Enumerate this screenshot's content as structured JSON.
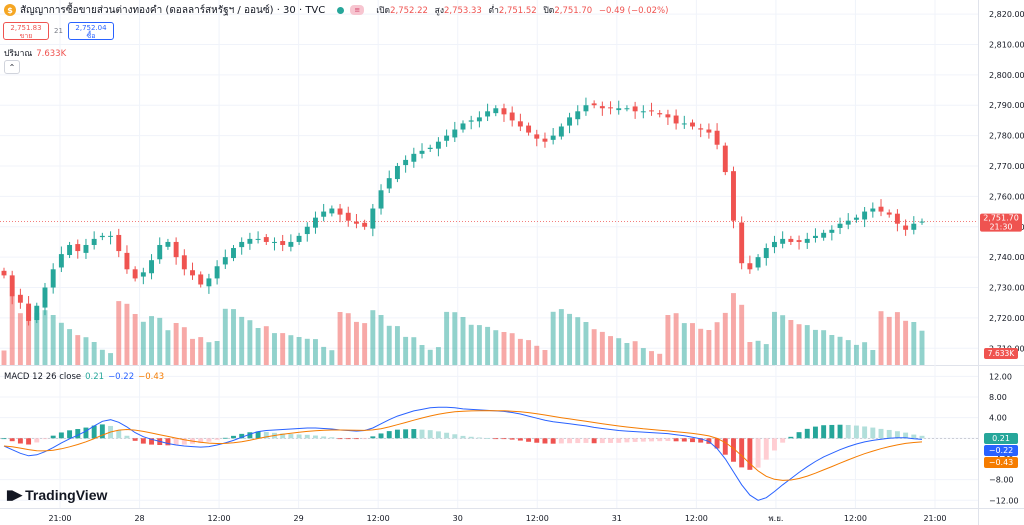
{
  "header": {
    "symbol_icon": "coin-icon",
    "title": "สัญญาการซื้อขายส่วนต่างทองคำ (ดอลลาร์สหรัฐฯ / ออนซ์) · 30 · TVC",
    "open_label": "เปิด",
    "open": "2,752.22",
    "high_label": "สูง",
    "high": "2,753.33",
    "low_label": "ต่ำ",
    "low": "2,751.52",
    "close_label": "ปิด",
    "close": "2,751.70",
    "change": "−0.49 (−0.02%)"
  },
  "quote": {
    "sell_price": "2,751.83",
    "sell_label": "ขาย",
    "spread": "21",
    "buy_price": "2,752.04",
    "buy_label": "ซื้อ"
  },
  "volume": {
    "label": "ปริมาณ",
    "value": "7.633K"
  },
  "macd": {
    "label": "MACD 12 26 close",
    "hist": "0.21",
    "macd": "−0.22",
    "signal": "−0.43"
  },
  "logo": {
    "text": "TradingView",
    "icon": "tradingview-logo-icon"
  },
  "colors": {
    "up": "#26a69a",
    "down": "#ef5350",
    "macd_line": "#2962ff",
    "signal_line": "#f57c00",
    "price_line": "#ef5350"
  },
  "chart_data": [
    {
      "type": "candlestick",
      "price_axis": {
        "ticks": [
          2710,
          2720,
          2730,
          2740,
          2750,
          2760,
          2770,
          2780,
          2790,
          2800,
          2810,
          2820
        ],
        "tick_labels": [
          "2,710.00",
          "2,720.00",
          "2,730.00",
          "2,740.00",
          "2,750.00",
          "2,760.00",
          "2,770.00",
          "2,780.00",
          "2,790.00",
          "2,800.00",
          "2,810.00",
          "2,820.00"
        ],
        "ylim": [
          2704.5,
          2822
        ]
      },
      "time_axis": {
        "tick_labels": [
          "21:00",
          "28",
          "12:00",
          "29",
          "12:00",
          "30",
          "12:00",
          "31",
          "12:00",
          "พ.ย.",
          "12:00",
          "21:00"
        ]
      },
      "last_price": "2,751.70",
      "last_time": "21:30",
      "volume_label": "7.633K",
      "closes": [
        2734,
        2727,
        2725,
        2719,
        2724,
        2730,
        2736,
        2741,
        2744,
        2742,
        2744,
        2746,
        2747,
        2747,
        2742,
        2736,
        2733,
        2735,
        2739,
        2744,
        2745,
        2740,
        2736,
        2734,
        2731,
        2733,
        2737,
        2740,
        2743,
        2745,
        2746,
        2746,
        2745,
        2745,
        2744,
        2745,
        2747,
        2750,
        2753,
        2755,
        2756,
        2754,
        2752,
        2751,
        2750,
        2756,
        2762,
        2766,
        2770,
        2772,
        2774,
        2775,
        2776,
        2778,
        2780,
        2782,
        2784,
        2785,
        2786,
        2788,
        2789,
        2787,
        2785,
        2783,
        2781,
        2779,
        2778,
        2780,
        2783,
        2786,
        2788,
        2790,
        2790,
        2789,
        2789,
        2789,
        2789,
        2788,
        2788,
        2788,
        2787,
        2786,
        2784,
        2784,
        2783,
        2782,
        2781,
        2777,
        2768,
        2752,
        2738,
        2736,
        2740,
        2743,
        2745,
        2746,
        2745,
        2745,
        2746,
        2747,
        2748,
        2749,
        2751,
        2752,
        2753,
        2755,
        2756,
        2755,
        2754,
        2751,
        2749,
        2751,
        2751.7
      ],
      "macd_values": [
        -1.5,
        -2.2,
        -2.9,
        -3.4,
        -3.2,
        -2.6,
        -1.8,
        -0.9,
        -0.1,
        0.6,
        1.4,
        2.4,
        3.3,
        3.6,
        3.1,
        2.2,
        1.1,
        0.3,
        -0.2,
        -0.6,
        -1.0,
        -1.3,
        -1.5,
        -1.6,
        -1.7,
        -1.6,
        -1.3,
        -0.9,
        -0.4,
        0.2,
        0.8,
        1.3,
        1.5,
        1.6,
        1.7,
        1.8,
        1.9,
        2.0,
        2.0,
        1.9,
        1.8,
        1.6,
        1.5,
        1.4,
        1.5,
        2.0,
        2.8,
        3.6,
        4.3,
        4.8,
        5.3,
        5.6,
        5.9,
        6.0,
        6.0,
        5.9,
        5.7,
        5.6,
        5.5,
        5.4,
        5.3,
        5.2,
        5.0,
        4.7,
        4.3,
        3.9,
        3.5,
        3.2,
        3.0,
        2.8,
        2.6,
        2.4,
        2.1,
        1.9,
        1.7,
        1.5,
        1.4,
        1.3,
        1.2,
        1.1,
        1.0,
        0.9,
        0.7,
        0.5,
        0.2,
        -0.1,
        -0.6,
        -2.0,
        -4.0,
        -6.5,
        -9.0,
        -11.0,
        -12.0,
        -11.5,
        -10.3,
        -9.0,
        -7.8,
        -6.6,
        -5.5,
        -4.5,
        -3.6,
        -2.9,
        -2.2,
        -1.6,
        -1.1,
        -0.7,
        -0.4,
        -0.2,
        0.0,
        0.1,
        0.1,
        -0.1,
        -0.22
      ],
      "macd_axis": {
        "ticks": [
          12,
          8,
          4,
          0,
          -4,
          -8,
          -12
        ],
        "tick_labels": [
          "12.00",
          "8.00",
          "4.00",
          "0.00",
          "−4.00",
          "−8.00",
          "−12.00"
        ],
        "ylim": [
          -13.5,
          14
        ]
      }
    }
  ]
}
